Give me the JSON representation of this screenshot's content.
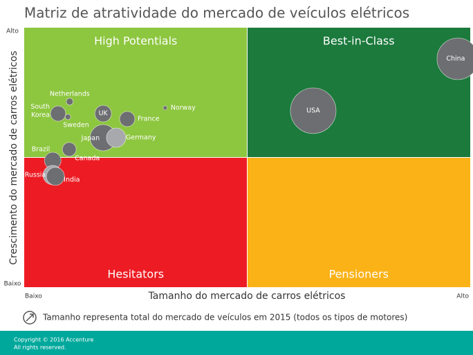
{
  "chart_data": {
    "type": "bubble",
    "title": "Matriz de atratividade do mercado de veículos elétricos",
    "x_label": "Tamanho do mercado de carros elétricos",
    "y_label": "Crescimento do mercado de carros elétricos",
    "xlim": [
      0,
      100
    ],
    "ylim": [
      0,
      100
    ],
    "xticks": [
      {
        "value": 0,
        "label": "Baixo"
      },
      {
        "value": 100,
        "label": "Alto"
      }
    ],
    "yticks": [
      {
        "value": 0,
        "label": "Baixo"
      },
      {
        "value": 100,
        "label": "Alto"
      }
    ],
    "quadrants": [
      "High Potentials",
      "Best-in-Class",
      "Hesitators",
      "Pensioners"
    ],
    "quadrant_colors": [
      "#8dc63f",
      "#1b7a3c",
      "#ed1c24",
      "#fbb217"
    ],
    "categories": [
      "China",
      "USA",
      "Norway",
      "Netherlands",
      "South Korea",
      "Sweden",
      "UK",
      "France",
      "Japan",
      "Germany",
      "Canada",
      "Brazil",
      "Russia",
      "India"
    ],
    "x": [
      97.2,
      64.8,
      31.6,
      10.2,
      7.6,
      9.8,
      17.7,
      23.1,
      17.7,
      20.6,
      10.1,
      6.4,
      6.4,
      7.0
    ],
    "values": [
      88.0,
      68.0,
      69.1,
      71.5,
      66.9,
      65.6,
      66.9,
      64.8,
      57.6,
      57.6,
      53.1,
      48.8,
      43.2,
      42.7
    ],
    "sizes": [
      900,
      1089,
      9,
      25,
      121,
      16,
      144,
      121,
      361,
      196,
      100,
      144,
      196,
      169
    ],
    "colors": [
      "#6d6e71",
      "#6d6e71",
      "#6d6e71",
      "#6d6e71",
      "#6d6e71",
      "#6d6e71",
      "#6d6e71",
      "#6d6e71",
      "#6d6e71",
      "#a7a9ac",
      "#6d6e71",
      "#6d6e71",
      "#a7a9ac",
      "#6d6e71"
    ],
    "note": "Tamanho representa total do mercado de veículos em 2015 (todos os tipos de motores)"
  },
  "footer": [
    "Copyright © 2016 Accenture",
    "All rights reserved."
  ]
}
